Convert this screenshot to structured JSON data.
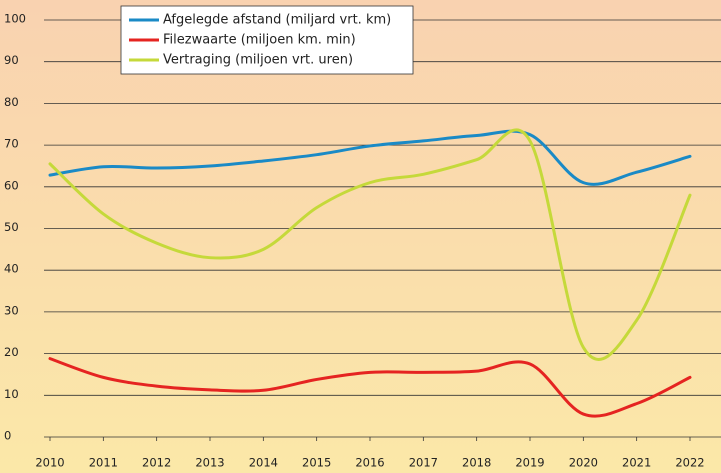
{
  "chart_data": {
    "type": "line",
    "x": [
      2010,
      2011,
      2012,
      2013,
      2014,
      2015,
      2016,
      2017,
      2018,
      2019,
      2020,
      2021,
      2022
    ],
    "xlim": [
      2010,
      2022
    ],
    "xticks": [
      2010,
      2011,
      2012,
      2013,
      2014,
      2015,
      2016,
      2017,
      2018,
      2019,
      2020,
      2021,
      2022
    ],
    "ylim": [
      0,
      100
    ],
    "yticks": [
      0,
      10,
      20,
      30,
      40,
      50,
      60,
      70,
      80,
      90,
      100
    ],
    "grid": true,
    "legend": "top",
    "series": [
      {
        "name": "Afgelegde afstand (miljard vrt. km)",
        "color": "#1a8ac6",
        "values": [
          62.8,
          64.8,
          64.5,
          65,
          66.2,
          67.7,
          69.8,
          71,
          72.3,
          72.5,
          61,
          63.5,
          67.3
        ]
      },
      {
        "name": "Filezwaarte (miljoen km. min)",
        "color": "#e52421",
        "values": [
          18.8,
          14.3,
          12.2,
          11.3,
          11.2,
          13.8,
          15.5,
          15.5,
          15.8,
          17.5,
          5.5,
          8,
          14.3
        ]
      },
      {
        "name": "Vertraging (miljoen vrt. uren)",
        "color": "#c5d93a",
        "values": [
          65.5,
          53.5,
          46.5,
          43,
          45,
          55,
          61,
          63,
          66.5,
          71,
          21.5,
          28,
          58
        ]
      }
    ]
  }
}
